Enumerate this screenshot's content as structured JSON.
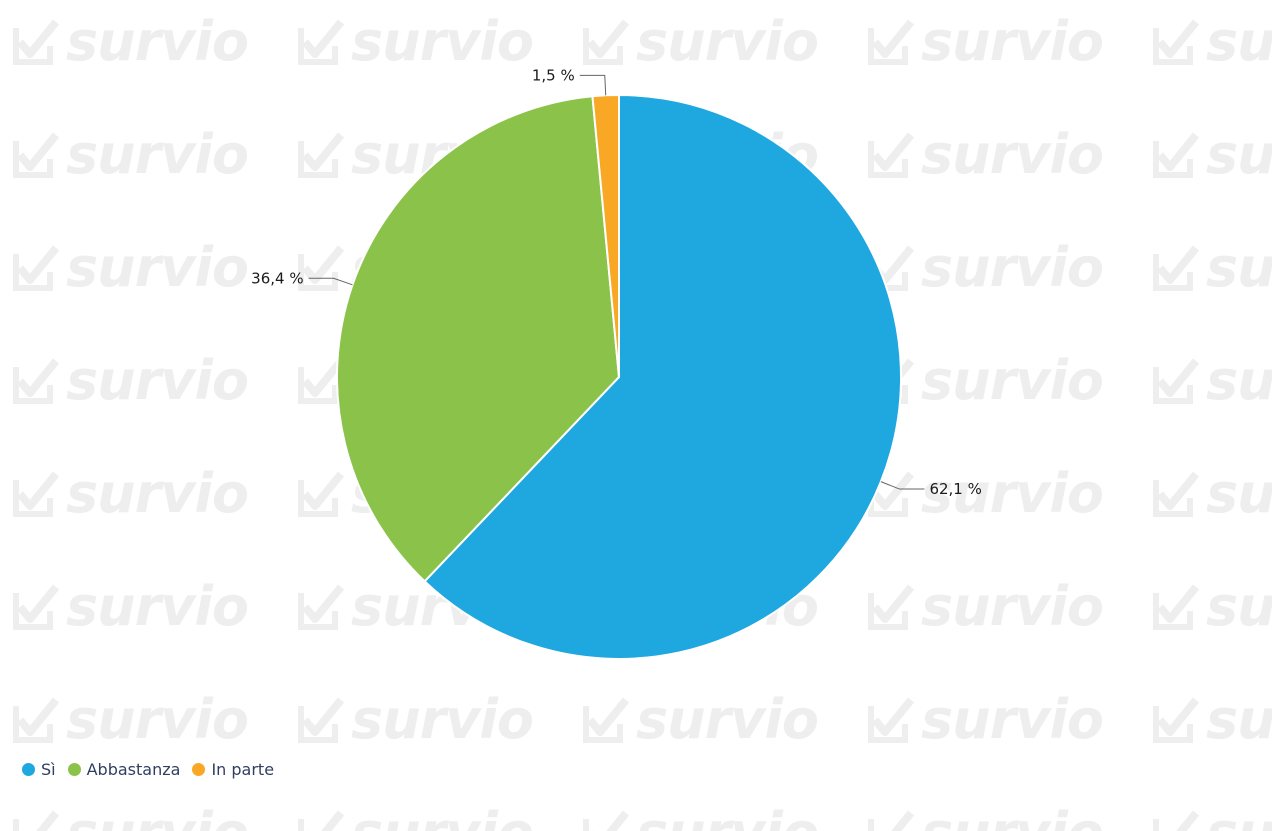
{
  "watermark": {
    "text": "survio",
    "icon": "checkbox-check-icon",
    "color": "#eeeeee"
  },
  "chart_data": {
    "type": "pie",
    "title": "",
    "categories": [
      "Sì",
      "Abbastanza",
      "In parte"
    ],
    "values": [
      62.1,
      36.4,
      1.5
    ],
    "labels": [
      "62,1 %",
      "36,4 %",
      "1,5 %"
    ],
    "colors": [
      "#1fa7e0",
      "#8bc34a",
      "#f9a825"
    ],
    "legend": "bottom-left",
    "start_angle_deg": 0,
    "direction": "clockwise"
  },
  "legend": {
    "items": [
      {
        "label": "Sì",
        "color": "#1fa7e0"
      },
      {
        "label": "Abbastanza",
        "color": "#8bc34a"
      },
      {
        "label": "In parte",
        "color": "#f9a825"
      }
    ]
  }
}
